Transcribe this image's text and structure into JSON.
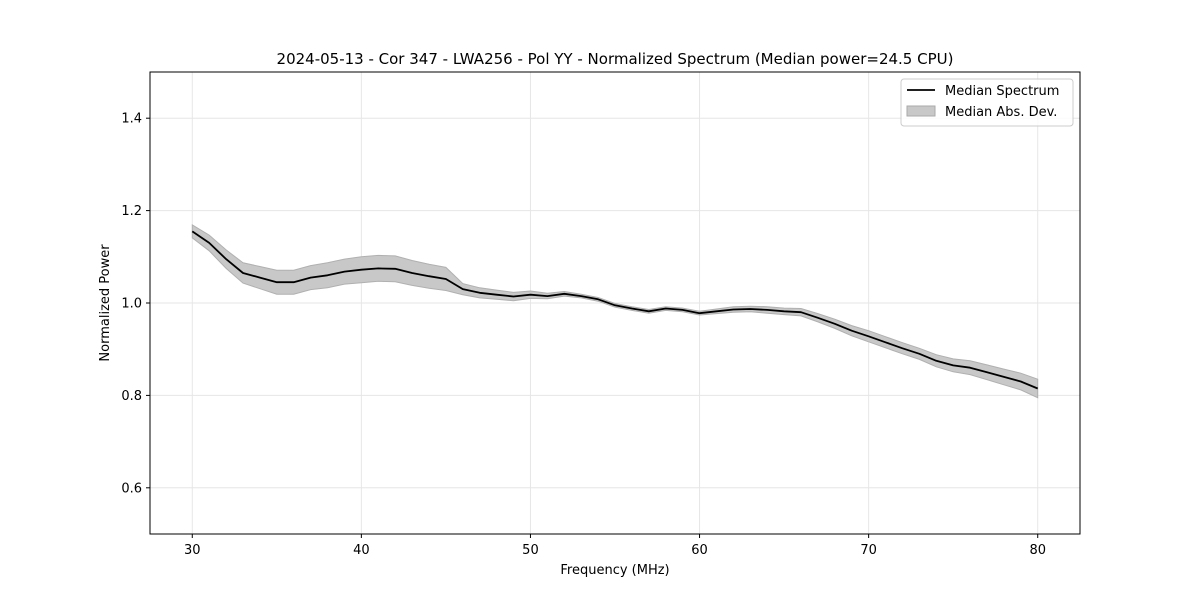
{
  "chart_data": {
    "type": "line",
    "title": "2024-05-13 - Cor 347 - LWA256 - Pol YY - Normalized Spectrum (Median power=24.5 CPU)",
    "xlabel": "Frequency (MHz)",
    "ylabel": "Normalized Power",
    "xlim": [
      27.5,
      82.5
    ],
    "ylim": [
      0.5,
      1.5
    ],
    "xticks": [
      30,
      40,
      50,
      60,
      70,
      80
    ],
    "yticks": [
      0.6,
      0.8,
      1.0,
      1.2,
      1.4
    ],
    "xtick_labels": [
      "30",
      "40",
      "50",
      "60",
      "70",
      "80"
    ],
    "ytick_labels": [
      "0.6",
      "0.8",
      "1.0",
      "1.2",
      "1.4"
    ],
    "grid": true,
    "legend_position": "top-right",
    "line_color": "#000000",
    "band_color": "#c8c8c8",
    "series": [
      {
        "name": "Median Spectrum",
        "kind": "line",
        "x": [
          30,
          31,
          32,
          33,
          34,
          35,
          36,
          37,
          38,
          39,
          40,
          41,
          42,
          43,
          44,
          45,
          46,
          47,
          48,
          49,
          50,
          51,
          52,
          53,
          54,
          55,
          56,
          57,
          58,
          59,
          60,
          61,
          62,
          63,
          64,
          65,
          66,
          67,
          68,
          69,
          70,
          71,
          72,
          73,
          74,
          75,
          76,
          77,
          78,
          79,
          80
        ],
        "values": [
          1.155,
          1.13,
          1.095,
          1.065,
          1.055,
          1.045,
          1.045,
          1.055,
          1.06,
          1.068,
          1.072,
          1.075,
          1.074,
          1.065,
          1.058,
          1.052,
          1.03,
          1.022,
          1.018,
          1.014,
          1.018,
          1.015,
          1.02,
          1.015,
          1.008,
          0.995,
          0.988,
          0.982,
          0.988,
          0.985,
          0.978,
          0.982,
          0.986,
          0.987,
          0.985,
          0.982,
          0.98,
          0.968,
          0.955,
          0.94,
          0.928,
          0.915,
          0.902,
          0.89,
          0.875,
          0.865,
          0.86,
          0.85,
          0.84,
          0.83,
          0.815
        ]
      },
      {
        "name": "Median Abs. Dev.",
        "kind": "band",
        "x": [
          30,
          31,
          32,
          33,
          34,
          35,
          36,
          37,
          38,
          39,
          40,
          41,
          42,
          43,
          44,
          45,
          46,
          47,
          48,
          49,
          50,
          51,
          52,
          53,
          54,
          55,
          56,
          57,
          58,
          59,
          60,
          61,
          62,
          63,
          64,
          65,
          66,
          67,
          68,
          69,
          70,
          71,
          72,
          73,
          74,
          75,
          76,
          77,
          78,
          79,
          80
        ],
        "values": [
          0.014,
          0.017,
          0.02,
          0.022,
          0.024,
          0.026,
          0.026,
          0.026,
          0.027,
          0.027,
          0.028,
          0.028,
          0.028,
          0.027,
          0.026,
          0.025,
          0.012,
          0.011,
          0.01,
          0.009,
          0.008,
          0.006,
          0.005,
          0.004,
          0.004,
          0.004,
          0.004,
          0.004,
          0.004,
          0.004,
          0.004,
          0.005,
          0.006,
          0.006,
          0.007,
          0.007,
          0.008,
          0.009,
          0.01,
          0.011,
          0.012,
          0.012,
          0.012,
          0.012,
          0.013,
          0.014,
          0.015,
          0.016,
          0.017,
          0.018,
          0.02
        ]
      }
    ]
  }
}
